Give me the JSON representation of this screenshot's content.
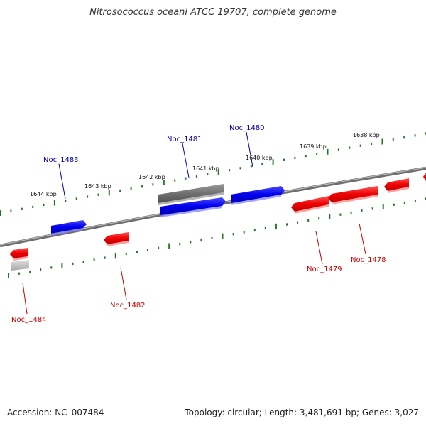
{
  "title": "Nitrosococcus oceani ATCC 19707, complete genome",
  "footer": {
    "accession": "Accession: NC_007484",
    "summary": "Topology: circular; Length: 3,481,691 bp; Genes: 3,027"
  },
  "colors": {
    "forward": "#0000ee",
    "reverse": "#ee0000",
    "backbone": "#808080",
    "ticks": "#227722",
    "forward_label": "#0000aa",
    "reverse_label": "#cc0000"
  },
  "scale_labels": [
    "1644 kbp",
    "1643 kbp",
    "1642 kbp",
    "1641 kbp",
    "1640 kbp",
    "1639 kbp",
    "1638 kbp"
  ],
  "genes": [
    {
      "name": "Noc_1483",
      "strand": "forward"
    },
    {
      "name": "Noc_1481",
      "strand": "forward"
    },
    {
      "name": "Noc_1480",
      "strand": "forward"
    },
    {
      "name": "Noc_1484",
      "strand": "reverse"
    },
    {
      "name": "Noc_1482",
      "strand": "reverse"
    },
    {
      "name": "Noc_1479",
      "strand": "reverse"
    },
    {
      "name": "Noc_1478",
      "strand": "reverse"
    }
  ]
}
